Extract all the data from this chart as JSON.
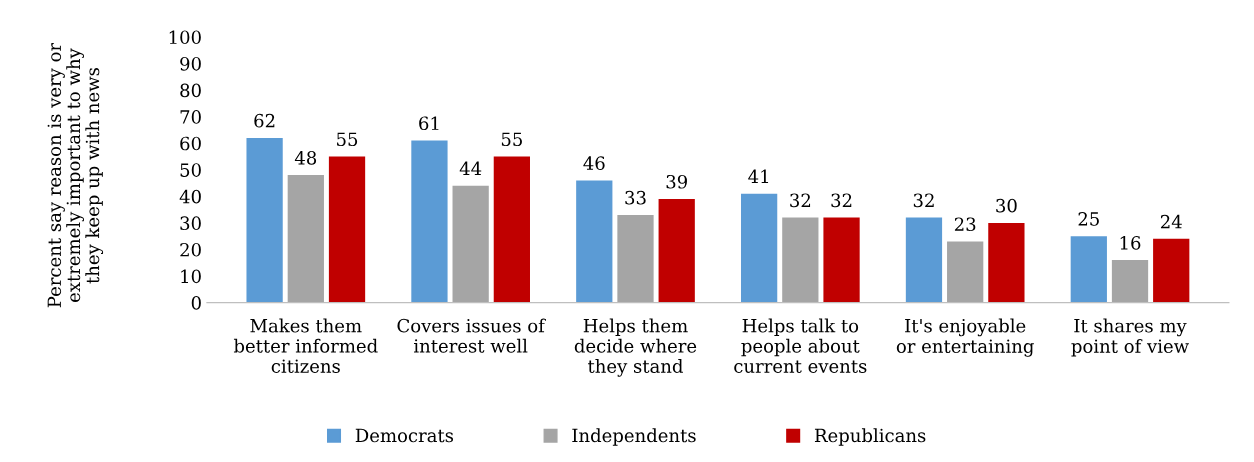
{
  "chart_data": {
    "type": "bar",
    "ylabel": "Percent say reason is very or extremely important to why they keep up with news",
    "categories": [
      "Makes them better informed citizens",
      "Covers issues of interest well",
      "Helps them decide where they stand",
      "Helps talk to people about current events",
      "It's enjoyable or entertaining",
      "It shares my point of view"
    ],
    "series": [
      {
        "name": "Democrats",
        "color": "#5b9bd5",
        "values": [
          62,
          61,
          46,
          41,
          32,
          25
        ]
      },
      {
        "name": "Independents",
        "color": "#a5a5a5",
        "values": [
          48,
          44,
          33,
          32,
          23,
          16
        ]
      },
      {
        "name": "Republicans",
        "color": "#c00000",
        "values": [
          55,
          55,
          39,
          32,
          30,
          24
        ]
      }
    ],
    "ylim": [
      0,
      100
    ],
    "yticks": [
      0,
      10,
      20,
      30,
      40,
      50,
      60,
      70,
      80,
      90,
      100
    ],
    "data_labels": true,
    "grid": false,
    "legend": "bottom"
  }
}
